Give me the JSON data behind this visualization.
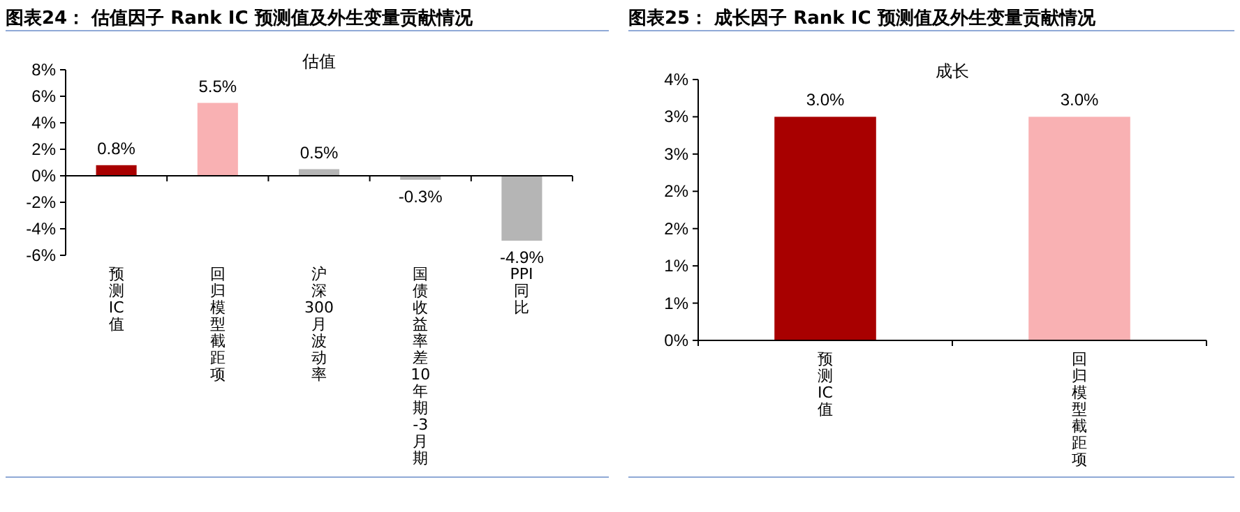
{
  "chart_data": [
    {
      "type": "bar",
      "title": "图表24：  估值因子 Rank IC 预测值及外生变量贡献情况",
      "annotations": [
        "估值"
      ],
      "categories": [
        "预测IC值",
        "回归模型截距项",
        "沪深300月波动率",
        "国债收益率差10年期-3月期",
        "PPI同比"
      ],
      "values": [
        0.8,
        5.5,
        0.5,
        -0.3,
        -4.9
      ],
      "value_labels": [
        "0.8%",
        "5.5%",
        "0.5%",
        "-0.3%",
        "-4.9%"
      ],
      "colors": [
        "#a80000",
        "#f9b1b3",
        "#b5b5b5",
        "#b5b5b5",
        "#b5b5b5"
      ],
      "ylim": [
        -6,
        8
      ],
      "yticks": [
        {
          "value": -6,
          "label": "-6%"
        },
        {
          "value": -4,
          "label": "-4%"
        },
        {
          "value": -2,
          "label": "-2%"
        },
        {
          "value": 0,
          "label": "0%"
        },
        {
          "value": 2,
          "label": "2%"
        },
        {
          "value": 4,
          "label": "4%"
        },
        {
          "value": 6,
          "label": "6%"
        },
        {
          "value": 8,
          "label": "8%"
        }
      ],
      "legend": false
    },
    {
      "type": "bar",
      "title": "图表25：  成长因子 Rank IC 预测值及外生变量贡献情况",
      "annotations": [
        "成长"
      ],
      "categories": [
        "预测IC值",
        "回归模型截距项"
      ],
      "values": [
        3.0,
        3.0
      ],
      "value_labels": [
        "3.0%",
        "3.0%"
      ],
      "colors": [
        "#a80000",
        "#f9b1b3"
      ],
      "ylim": [
        0,
        3.5
      ],
      "yticks": [
        {
          "value": 0,
          "label": "0%"
        },
        {
          "value": 0.5,
          "label": "1%"
        },
        {
          "value": 1,
          "label": "1%"
        },
        {
          "value": 1.5,
          "label": "2%"
        },
        {
          "value": 2,
          "label": "2%"
        },
        {
          "value": 2.5,
          "label": "3%"
        },
        {
          "value": 3,
          "label": "3%"
        },
        {
          "value": 3.5,
          "label": "4%"
        }
      ],
      "legend": false
    }
  ]
}
